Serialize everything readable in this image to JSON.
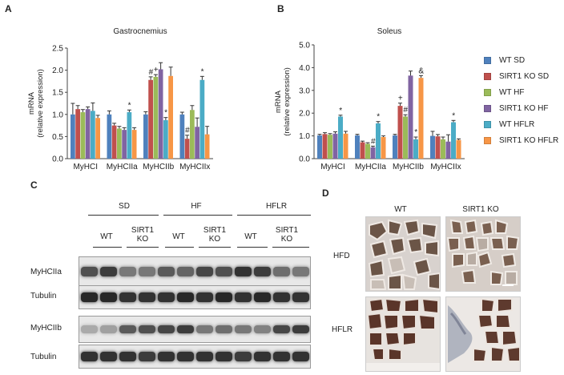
{
  "panels": {
    "a": "A",
    "b": "B",
    "c": "C",
    "d": "D"
  },
  "colors": {
    "wt_sd": "#4f81bd",
    "ko_sd": "#c0504d",
    "wt_hf": "#9bbb59",
    "ko_hf": "#8064a2",
    "wt_hflr": "#4bacc6",
    "ko_hflr": "#f79646"
  },
  "legend": [
    "WT SD",
    "SIRT1 KO SD",
    "WT HF",
    "SIRT1 KO HF",
    "WT HFLR",
    "SIRT1 KO HFLR"
  ],
  "chart_data": [
    {
      "type": "bar",
      "title": "Gastrocnemius",
      "ylabel": [
        "mRNA",
        "(relative expression)"
      ],
      "ylim": [
        0,
        2.5
      ],
      "yticks": [
        "0.0",
        "0.5",
        "1.0",
        "1.5",
        "2.0",
        "2.5"
      ],
      "categories": [
        "MyHCI",
        "MyHCIIa",
        "MyHCIIb",
        "MyHCIIx"
      ],
      "series": [
        {
          "name": "WT SD",
          "values": [
            1.0,
            1.0,
            1.0,
            1.0
          ],
          "err": [
            0.25,
            0.08,
            0.06,
            0.05
          ]
        },
        {
          "name": "SIRT1 KO SD",
          "values": [
            1.12,
            0.75,
            1.78,
            0.45
          ],
          "err": [
            0.08,
            0.05,
            0.07,
            0.08
          ]
        },
        {
          "name": "WT HF",
          "values": [
            1.05,
            0.68,
            1.85,
            1.1
          ],
          "err": [
            0.06,
            0.05,
            0.05,
            0.1
          ]
        },
        {
          "name": "SIRT1 KO HF",
          "values": [
            1.12,
            0.65,
            2.02,
            0.72
          ],
          "err": [
            0.05,
            0.05,
            0.15,
            0.2
          ]
        },
        {
          "name": "WT HFLR",
          "values": [
            1.08,
            1.05,
            0.87,
            1.78
          ],
          "err": [
            0.18,
            0.05,
            0.06,
            0.08
          ]
        },
        {
          "name": "SIRT1 KO HFLR",
          "values": [
            0.92,
            0.65,
            1.87,
            0.55
          ],
          "err": [
            0.06,
            0.05,
            0.2,
            0.18
          ]
        }
      ],
      "annotations": [
        {
          "category": 1,
          "series": 4,
          "text": "*"
        },
        {
          "category": 2,
          "series": 1,
          "text": "#"
        },
        {
          "category": 2,
          "series": 2,
          "text": "+"
        },
        {
          "category": 2,
          "series": 4,
          "text": "*"
        },
        {
          "category": 3,
          "series": 1,
          "text": "#"
        },
        {
          "category": 3,
          "series": 4,
          "text": "*"
        }
      ]
    },
    {
      "type": "bar",
      "title": "Soleus",
      "ylabel": [
        "mRNA",
        "(relative expression)"
      ],
      "ylim": [
        0,
        5.0
      ],
      "yticks": [
        "0.0",
        "1.0",
        "2.0",
        "3.0",
        "4.0",
        "5.0"
      ],
      "categories": [
        "MyHCI",
        "MyHCIIa",
        "MyHCIIb",
        "MyHCIIx"
      ],
      "series": [
        {
          "name": "WT SD",
          "values": [
            1.02,
            1.02,
            1.02,
            1.0
          ],
          "err": [
            0.05,
            0.05,
            0.05,
            0.2
          ]
        },
        {
          "name": "SIRT1 KO SD",
          "values": [
            1.08,
            0.72,
            2.32,
            0.98
          ],
          "err": [
            0.06,
            0.05,
            0.12,
            0.08
          ]
        },
        {
          "name": "WT HF",
          "values": [
            1.05,
            0.65,
            1.85,
            0.85
          ],
          "err": [
            0.05,
            0.05,
            0.08,
            0.1
          ]
        },
        {
          "name": "SIRT1 KO HF",
          "values": [
            1.1,
            0.5,
            3.65,
            0.75
          ],
          "err": [
            0.08,
            0.05,
            0.2,
            0.3
          ]
        },
        {
          "name": "WT HFLR",
          "values": [
            1.85,
            1.55,
            0.85,
            1.6
          ],
          "err": [
            0.06,
            0.08,
            0.1,
            0.08
          ]
        },
        {
          "name": "SIRT1 KO HFLR",
          "values": [
            1.1,
            0.95,
            3.55,
            0.82
          ],
          "err": [
            0.1,
            0.05,
            0.1,
            0.05
          ]
        }
      ],
      "annotations": [
        {
          "category": 0,
          "series": 4,
          "text": "*"
        },
        {
          "category": 1,
          "series": 3,
          "text": "#"
        },
        {
          "category": 1,
          "series": 4,
          "text": "*"
        },
        {
          "category": 2,
          "series": 1,
          "text": "+"
        },
        {
          "category": 2,
          "series": 2,
          "text": "#"
        },
        {
          "category": 2,
          "series": 4,
          "text": "*"
        },
        {
          "category": 2,
          "series": 5,
          "text": "&"
        },
        {
          "category": 3,
          "series": 4,
          "text": "*"
        }
      ]
    }
  ],
  "western": {
    "groups": [
      "SD",
      "HF",
      "HFLR"
    ],
    "subgroups": [
      "WT",
      "SIRT1\nKO",
      "WT",
      "SIRT1\nKO",
      "WT",
      "SIRT1\nKO"
    ],
    "rows": [
      "MyHCIIa",
      "Tubulin",
      "MyHCIIb",
      "Tubulin"
    ],
    "intensity": [
      [
        0.75,
        0.85,
        0.55,
        0.55,
        0.7,
        0.65,
        0.8,
        0.75,
        0.9,
        0.85,
        0.6,
        0.55
      ],
      [
        0.95,
        0.95,
        0.9,
        0.9,
        0.9,
        0.95,
        0.9,
        0.95,
        0.9,
        0.95,
        0.9,
        0.9
      ],
      [
        0.3,
        0.35,
        0.7,
        0.75,
        0.8,
        0.85,
        0.55,
        0.6,
        0.55,
        0.5,
        0.8,
        0.85
      ],
      [
        0.9,
        0.9,
        0.9,
        0.85,
        0.9,
        0.9,
        0.9,
        0.9,
        0.85,
        0.9,
        0.9,
        0.9
      ]
    ]
  },
  "histology": {
    "cols": [
      "WT",
      "SIRT1 KO"
    ],
    "rows": [
      "HFD",
      "HFLR"
    ]
  }
}
